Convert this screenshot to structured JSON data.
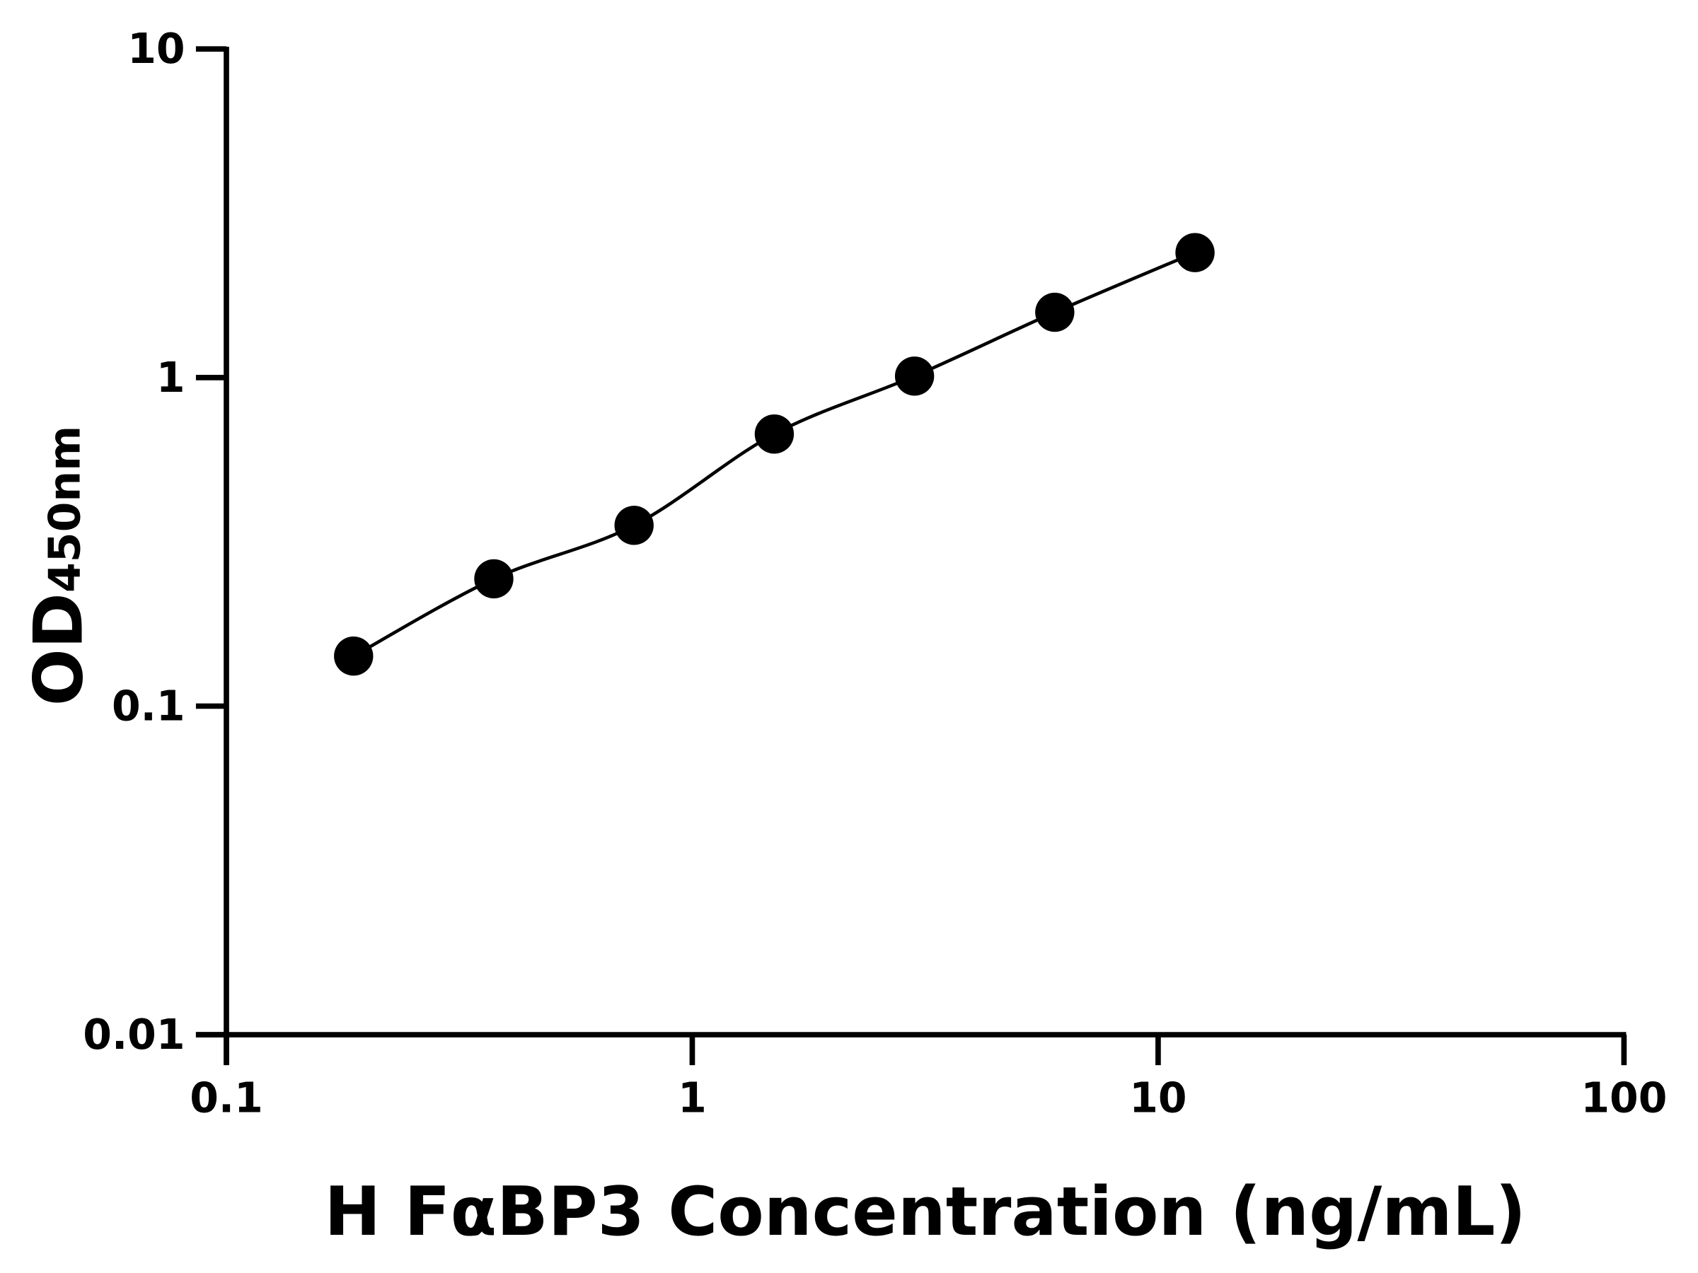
{
  "chart_data": {
    "type": "scatter",
    "title": "",
    "xlabel": "H FαBP3 Concentration (ng/mL)",
    "ylabel_main": "OD",
    "ylabel_sub": "450nm",
    "x_scale": "log",
    "y_scale": "log",
    "xlim": [
      0.1,
      100
    ],
    "ylim": [
      0.01,
      10
    ],
    "x_ticks": [
      "0.1",
      "1",
      "10",
      "100"
    ],
    "y_ticks": [
      "0.01",
      "0.1",
      "1",
      "10"
    ],
    "grid": false,
    "legend": "none",
    "fit_line": true,
    "series": [
      {
        "x": [
          0.1875,
          0.375,
          0.75,
          1.5,
          3,
          6,
          12
        ],
        "y": [
          0.142,
          0.244,
          0.355,
          0.673,
          1.01,
          1.58,
          2.4
        ]
      }
    ],
    "colors": {
      "marker": "#000000",
      "line": "#000000",
      "axis": "#000000"
    }
  }
}
